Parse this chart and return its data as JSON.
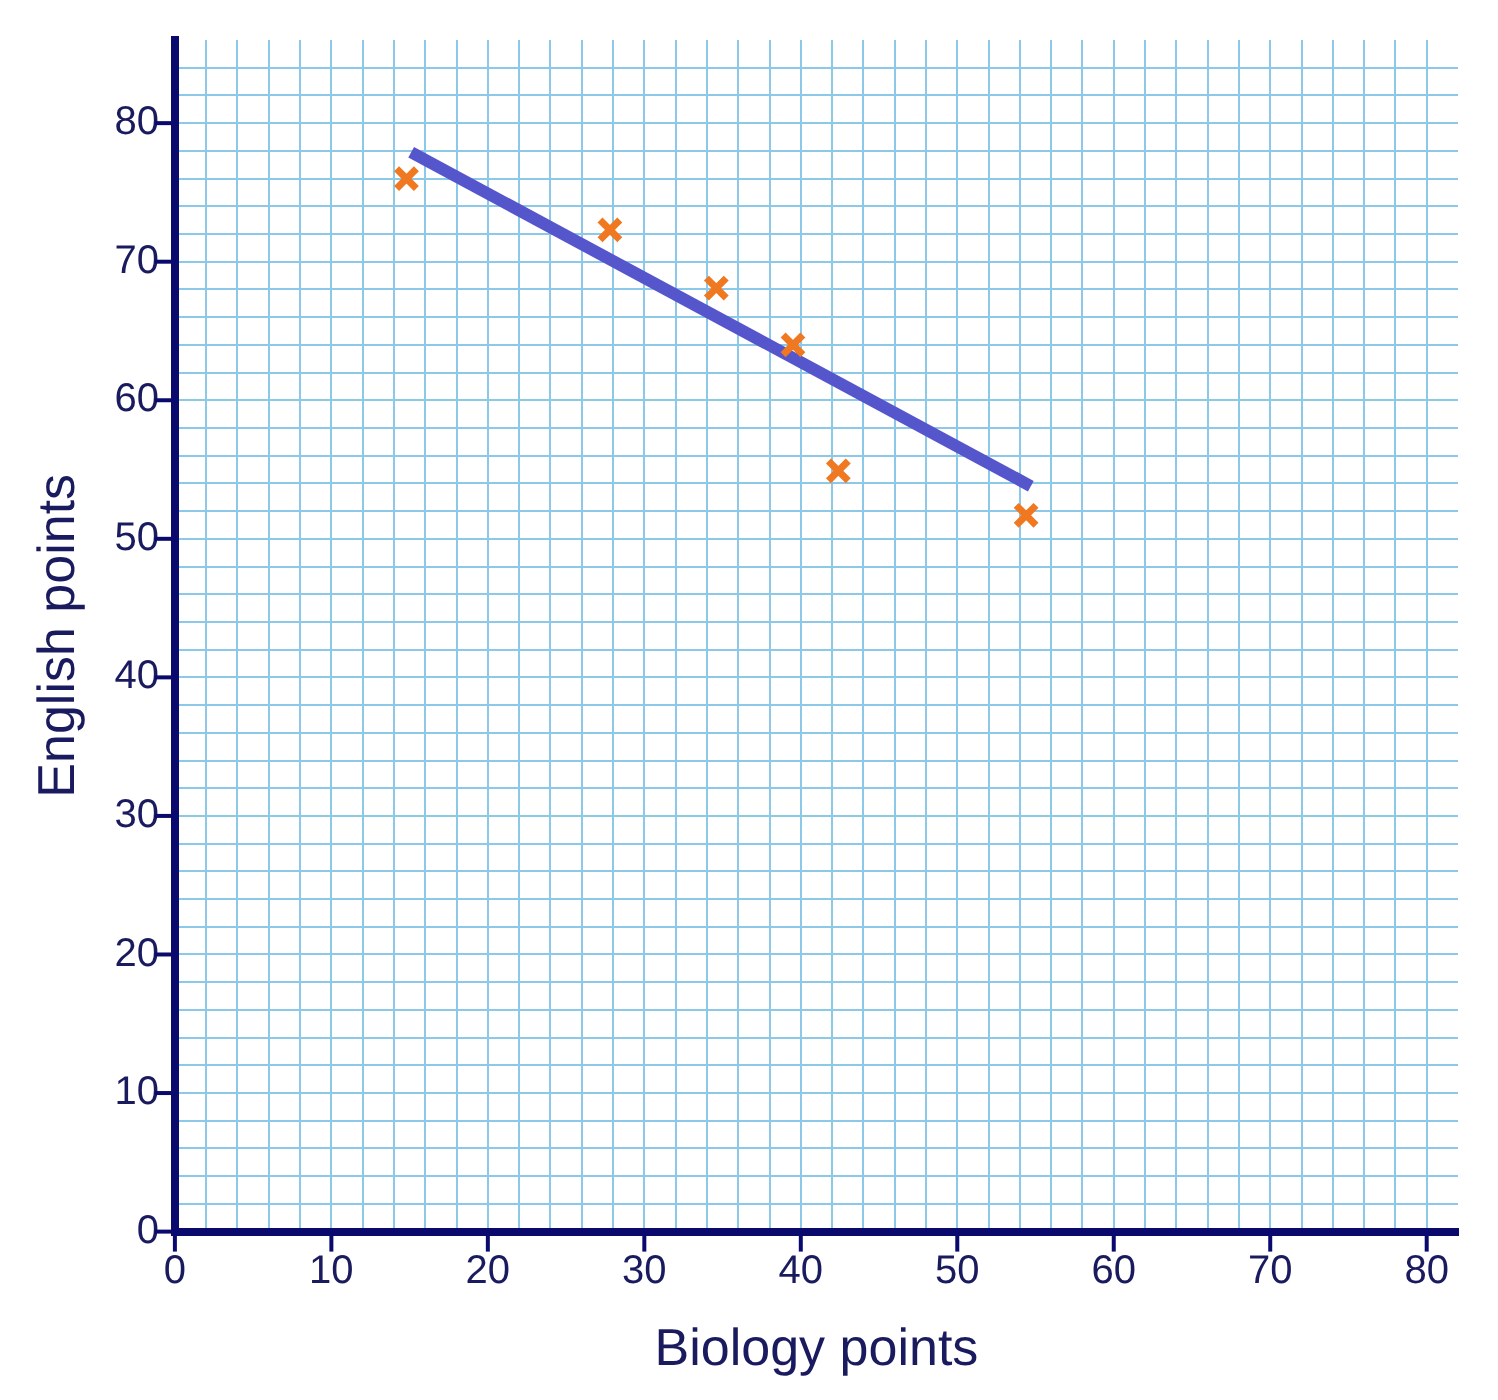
{
  "chart_data": {
    "type": "scatter",
    "xlabel": "Biology points",
    "ylabel": "English points",
    "xlim": [
      0,
      82
    ],
    "ylim": [
      0,
      86
    ],
    "xticks": [
      0,
      {
        "value": 2,
        "label": null
      },
      {
        "value": 4,
        "label": null
      },
      {
        "value": 6,
        "label": null
      },
      {
        "value": 8,
        "label": null
      },
      10,
      {
        "value": 12,
        "label": null
      },
      {
        "value": 14,
        "label": null
      },
      {
        "value": 16,
        "label": null
      },
      {
        "value": 18,
        "label": null
      },
      20,
      {
        "value": 22,
        "label": null
      },
      {
        "value": 24,
        "label": null
      },
      {
        "value": 26,
        "label": null
      },
      {
        "value": 28,
        "label": null
      },
      30,
      {
        "value": 32,
        "label": null
      },
      {
        "value": 34,
        "label": null
      },
      {
        "value": 36,
        "label": null
      },
      {
        "value": 38,
        "label": null
      },
      40,
      {
        "value": 42,
        "label": null
      },
      {
        "value": 44,
        "label": null
      },
      {
        "value": 46,
        "label": null
      },
      {
        "value": 48,
        "label": null
      },
      50,
      {
        "value": 52,
        "label": null
      },
      {
        "value": 54,
        "label": null
      },
      {
        "value": 56,
        "label": null
      },
      {
        "value": 58,
        "label": null
      },
      60,
      {
        "value": 62,
        "label": null
      },
      {
        "value": 64,
        "label": null
      },
      {
        "value": 66,
        "label": null
      },
      {
        "value": 68,
        "label": null
      },
      70,
      {
        "value": 72,
        "label": null
      },
      {
        "value": 74,
        "label": null
      },
      {
        "value": 76,
        "label": null
      },
      {
        "value": 78,
        "label": null
      },
      80
    ],
    "yticks": [
      0,
      {
        "value": 2,
        "label": null
      },
      {
        "value": 4,
        "label": null
      },
      {
        "value": 6,
        "label": null
      },
      {
        "value": 8,
        "label": null
      },
      10,
      {
        "value": 12,
        "label": null
      },
      {
        "value": 14,
        "label": null
      },
      {
        "value": 16,
        "label": null
      },
      {
        "value": 18,
        "label": null
      },
      20,
      {
        "value": 22,
        "label": null
      },
      {
        "value": 24,
        "label": null
      },
      {
        "value": 26,
        "label": null
      },
      {
        "value": 28,
        "label": null
      },
      30,
      {
        "value": 32,
        "label": null
      },
      {
        "value": 34,
        "label": null
      },
      {
        "value": 36,
        "label": null
      },
      {
        "value": 38,
        "label": null
      },
      40,
      {
        "value": 42,
        "label": null
      },
      {
        "value": 44,
        "label": null
      },
      {
        "value": 46,
        "label": null
      },
      {
        "value": 48,
        "label": null
      },
      50,
      {
        "value": 52,
        "label": null
      },
      {
        "value": 54,
        "label": null
      },
      {
        "value": 56,
        "label": null
      },
      {
        "value": 58,
        "label": null
      },
      60,
      {
        "value": 62,
        "label": null
      },
      {
        "value": 64,
        "label": null
      },
      {
        "value": 66,
        "label": null
      },
      {
        "value": 68,
        "label": null
      },
      70,
      {
        "value": 72,
        "label": null
      },
      {
        "value": 74,
        "label": null
      },
      {
        "value": 76,
        "label": null
      },
      {
        "value": 78,
        "label": null
      },
      80,
      {
        "value": 82,
        "label": null
      },
      {
        "value": 84,
        "label": null
      }
    ],
    "grid": true,
    "legend": false,
    "marker": "cross",
    "series": [
      {
        "color": "#f07820",
        "x": [
          14.8,
          27.8,
          34.6,
          39.5,
          42.4,
          54.4
        ],
        "values": [
          76,
          72.3,
          68.1,
          64,
          54.9,
          51.7
        ]
      },
      {
        "type": "line",
        "color": "#5555cc",
        "marker": "none",
        "x": [
          15.1,
          54.7
        ],
        "values": [
          77.9,
          53.8
        ]
      }
    ]
  }
}
